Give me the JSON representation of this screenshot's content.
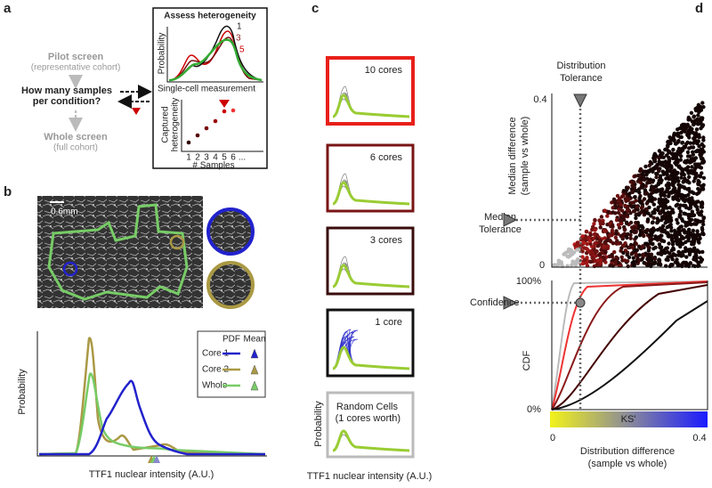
{
  "panels": {
    "a": {
      "label": "a",
      "pilot": "Pilot screen",
      "pilot_sub": "(representative cohort)",
      "question": [
        "How many samples",
        "per condition?"
      ],
      "whole": "Whole screen",
      "whole_sub": "(full cohort)",
      "box_title": "Assess heterogeneity",
      "top_ylabel": "Probability",
      "top_xlabel": "Single-cell measurement",
      "curve_labels": [
        "1",
        "3",
        "5"
      ],
      "bottom_ylabel": [
        "Captured",
        "heterogeneity"
      ],
      "bottom_xlabel": "# Samples",
      "sample_ticks": [
        "1",
        "2",
        "3",
        "4",
        "5",
        "6",
        "..."
      ]
    },
    "b": {
      "label": "b",
      "scale_bar": "0.6mm",
      "ylabel": "Probability",
      "xlabel": "TTF1 nuclear intensity (A.U.)",
      "legend_headers": [
        "PDF",
        "Mean"
      ],
      "legend_items": [
        "Core 1",
        "Core 2",
        "Whole"
      ]
    },
    "c": {
      "label": "c",
      "boxes": [
        "10 cores",
        "6 cores",
        "3 cores",
        "1 core"
      ],
      "random": [
        "Random Cells",
        "(1 cores worth)"
      ],
      "ylabel": "Probability",
      "xlabel": "TTF1 nuclear intensity (A.U.)"
    },
    "d": {
      "label": "d",
      "dist_tol": [
        "Distribution",
        "Tolerance"
      ],
      "y_ticks": [
        "0.4",
        "0"
      ],
      "ylabel": [
        "Median difference",
        "(sample vs whole)"
      ],
      "median_tol": [
        "Median",
        "Tolerance"
      ],
      "cdf_ticks": [
        "100%",
        "0%"
      ],
      "confidence": "Confidence",
      "cdf_label": "CDF",
      "colorbar": "KS'",
      "x_ticks": [
        "0",
        "0.4"
      ],
      "xlabel": [
        "Distribution difference",
        "(sample vs whole)"
      ]
    }
  }
}
